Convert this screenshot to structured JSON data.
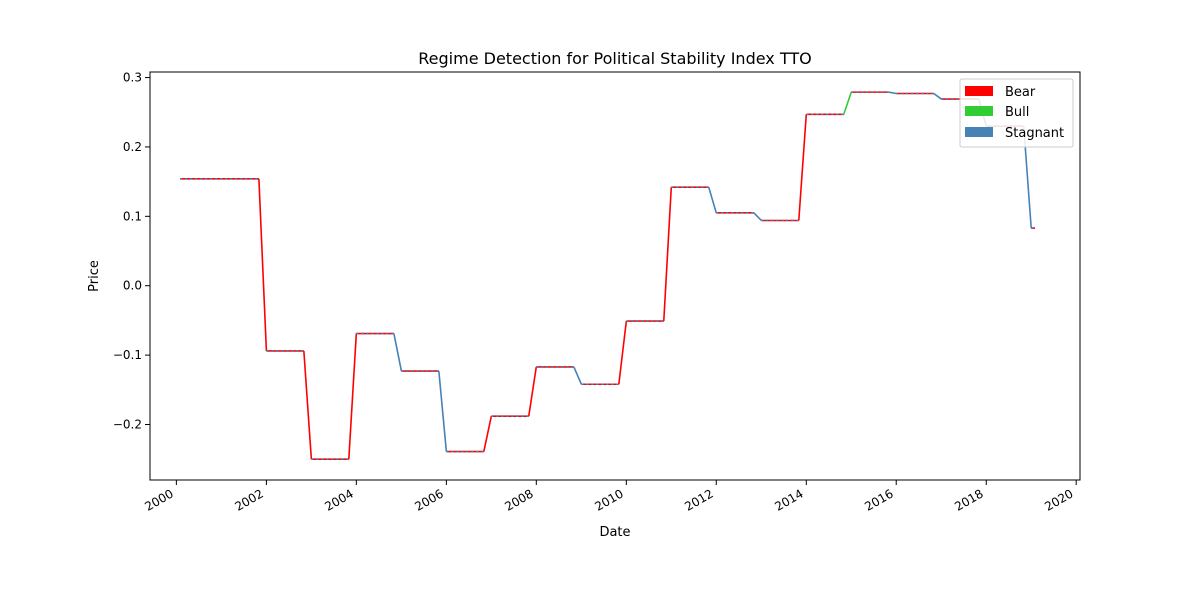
{
  "chart_data": {
    "type": "line",
    "title": "Regime Detection for Political Stability Index TTO",
    "xlabel": "Date",
    "ylabel": "Price",
    "xlim": [
      "1999-06-01",
      "2020-02-01"
    ],
    "ylim": [
      -0.28,
      0.308
    ],
    "x_ticks": [
      "2000",
      "2002",
      "2004",
      "2006",
      "2008",
      "2010",
      "2012",
      "2014",
      "2016",
      "2018",
      "2020"
    ],
    "y_ticks": [
      "0.3",
      "0.2",
      "0.1",
      "0.0",
      "−0.1",
      "−0.2"
    ],
    "grid": false,
    "legend_position": "top-right",
    "colors": {
      "Bear": "#ff0000",
      "Bull": "#32cd32",
      "Stagnant": "#4682b4"
    },
    "series": [
      {
        "name": "Bear"
      },
      {
        "name": "Bull"
      },
      {
        "name": "Stagnant"
      }
    ],
    "points": [
      {
        "date": "2000-02-01",
        "value": 0.154
      },
      {
        "date": "2001-11-01",
        "value": 0.154,
        "regime": "Bear"
      },
      {
        "date": "2002-01-01",
        "value": -0.094,
        "regime": "Bear"
      },
      {
        "date": "2002-11-01",
        "value": -0.094,
        "regime": "Bear"
      },
      {
        "date": "2003-01-01",
        "value": -0.25,
        "regime": "Bear"
      },
      {
        "date": "2003-11-01",
        "value": -0.25,
        "regime": "Bear"
      },
      {
        "date": "2004-01-01",
        "value": -0.069,
        "regime": "Bear"
      },
      {
        "date": "2004-11-01",
        "value": -0.069,
        "regime": "Bull"
      },
      {
        "date": "2005-01-01",
        "value": -0.123,
        "regime": "Stagnant"
      },
      {
        "date": "2005-11-01",
        "value": -0.123,
        "regime": "Stagnant"
      },
      {
        "date": "2006-01-01",
        "value": -0.239,
        "regime": "Stagnant"
      },
      {
        "date": "2006-11-01",
        "value": -0.239,
        "regime": "Bull"
      },
      {
        "date": "2007-01-01",
        "value": -0.188,
        "regime": "Bear"
      },
      {
        "date": "2007-11-01",
        "value": -0.188,
        "regime": "Bear"
      },
      {
        "date": "2008-01-01",
        "value": -0.117,
        "regime": "Bear"
      },
      {
        "date": "2008-11-01",
        "value": -0.117,
        "regime": "Bull"
      },
      {
        "date": "2009-01-01",
        "value": -0.142,
        "regime": "Stagnant"
      },
      {
        "date": "2009-11-01",
        "value": -0.142,
        "regime": "Stagnant"
      },
      {
        "date": "2010-01-01",
        "value": -0.051,
        "regime": "Bear"
      },
      {
        "date": "2010-11-01",
        "value": -0.051,
        "regime": "Bear"
      },
      {
        "date": "2011-01-01",
        "value": 0.142,
        "regime": "Bear"
      },
      {
        "date": "2011-11-01",
        "value": 0.142,
        "regime": "Bull"
      },
      {
        "date": "2012-01-01",
        "value": 0.105,
        "regime": "Stagnant"
      },
      {
        "date": "2012-11-01",
        "value": 0.105,
        "regime": "Bull"
      },
      {
        "date": "2013-01-01",
        "value": 0.094,
        "regime": "Stagnant"
      },
      {
        "date": "2013-11-01",
        "value": 0.094,
        "regime": "Stagnant"
      },
      {
        "date": "2014-01-01",
        "value": 0.247,
        "regime": "Bear"
      },
      {
        "date": "2014-11-01",
        "value": 0.247,
        "regime": "Bear"
      },
      {
        "date": "2015-01-01",
        "value": 0.279,
        "regime": "Bull"
      },
      {
        "date": "2015-11-01",
        "value": 0.279,
        "regime": "Bull"
      },
      {
        "date": "2016-01-01",
        "value": 0.277,
        "regime": "Stagnant"
      },
      {
        "date": "2016-11-01",
        "value": 0.277,
        "regime": "Bull"
      },
      {
        "date": "2017-01-01",
        "value": 0.269,
        "regime": "Stagnant"
      },
      {
        "date": "2017-11-01",
        "value": 0.269,
        "regime": "Stagnant"
      },
      {
        "date": "2018-01-01",
        "value": 0.23,
        "regime": "Stagnant"
      },
      {
        "date": "2018-11-01",
        "value": 0.23,
        "regime": "Stagnant"
      },
      {
        "date": "2019-01-01",
        "value": 0.083,
        "regime": "Stagnant"
      },
      {
        "date": "2019-02-01",
        "value": 0.083,
        "regime": "Bear"
      }
    ]
  }
}
